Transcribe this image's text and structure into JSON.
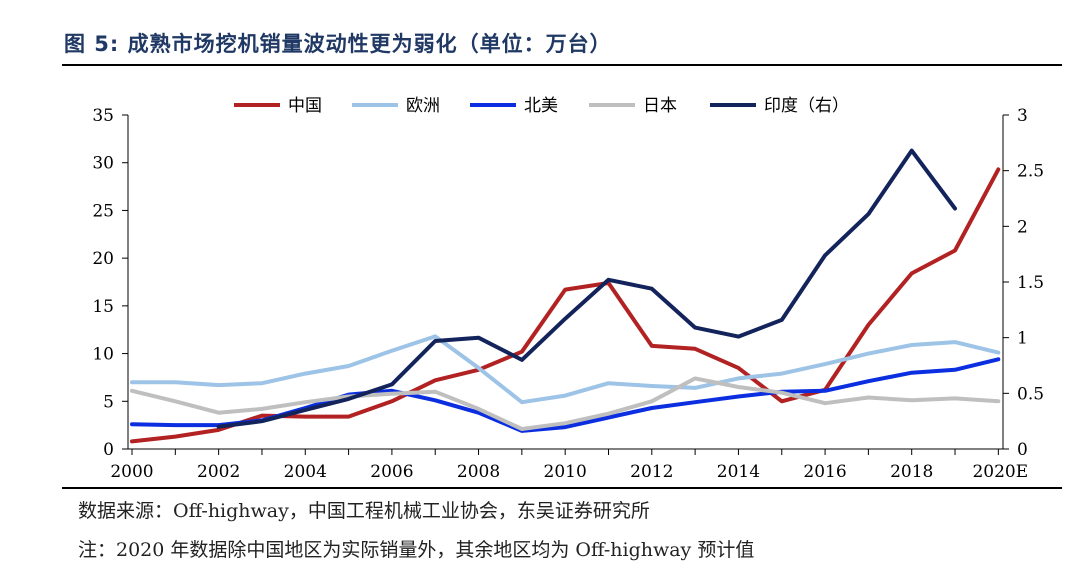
{
  "title": "图 5:  成熟市场挖机销量波动性更为弱化（单位：万台）",
  "source_note": "数据来源：Off-highway，中国工程机械工业协会，东吴证券研究所",
  "footnote": "注：2020 年数据除中国地区为实际销量外，其余地区均为 Off-highway 预计值",
  "chart_data": {
    "type": "line",
    "title": "成熟市场挖机销量波动性更为弱化（单位：万台）",
    "x": [
      "2000",
      "2001",
      "2002",
      "2003",
      "2004",
      "2005",
      "2006",
      "2007",
      "2008",
      "2009",
      "2010",
      "2011",
      "2012",
      "2013",
      "2014",
      "2015",
      "2016",
      "2017",
      "2018",
      "2019",
      "2020E"
    ],
    "x_tick_labels": [
      "2000",
      "2002",
      "2004",
      "2006",
      "2008",
      "2010",
      "2012",
      "2014",
      "2016",
      "2018",
      "2020E"
    ],
    "ylim_left": [
      0,
      35
    ],
    "yticks_left": [
      0,
      5,
      10,
      15,
      20,
      25,
      30,
      35
    ],
    "ylim_right": [
      0,
      3
    ],
    "yticks_right": [
      "0",
      "0.5",
      "1",
      "1.5",
      "2",
      "2.5",
      "3"
    ],
    "legend_position": "top",
    "series": [
      {
        "name": "中国",
        "color": "#b22222",
        "axis": "left",
        "values": [
          0.8,
          1.3,
          2.0,
          3.5,
          3.4,
          3.4,
          5.0,
          7.2,
          8.3,
          10.2,
          16.7,
          17.4,
          10.8,
          10.5,
          8.5,
          5.0,
          6.2,
          13.0,
          18.4,
          20.8,
          29.3
        ]
      },
      {
        "name": "欧洲",
        "color": "#9dc3e6",
        "axis": "left",
        "values": [
          7.0,
          7.0,
          6.7,
          6.9,
          7.9,
          8.7,
          10.3,
          11.8,
          8.5,
          4.9,
          5.6,
          6.9,
          6.6,
          6.4,
          7.4,
          7.9,
          8.9,
          10.0,
          10.9,
          11.2,
          10.1
        ]
      },
      {
        "name": "北美",
        "color": "#0a2ee0",
        "axis": "left",
        "values": [
          2.6,
          2.5,
          2.5,
          3.0,
          4.3,
          5.7,
          6.1,
          5.1,
          3.8,
          1.9,
          2.3,
          3.3,
          4.3,
          4.9,
          5.5,
          6.0,
          6.1,
          7.1,
          8.0,
          8.3,
          9.4
        ]
      },
      {
        "name": "日本",
        "color": "#bfbfbf",
        "axis": "left",
        "values": [
          6.1,
          5.0,
          3.8,
          4.2,
          4.9,
          5.5,
          5.8,
          6.0,
          4.2,
          2.1,
          2.7,
          3.7,
          5.0,
          7.4,
          6.5,
          5.9,
          4.8,
          5.4,
          5.1,
          5.3,
          5.0
        ]
      },
      {
        "name": "印度（右）",
        "color": "#13235b",
        "axis": "right",
        "values": [
          null,
          null,
          0.2,
          0.25,
          0.35,
          0.45,
          0.58,
          0.97,
          1.0,
          0.8,
          1.17,
          1.52,
          1.44,
          1.09,
          1.01,
          1.16,
          1.74,
          2.11,
          2.68,
          2.16,
          null
        ]
      }
    ]
  }
}
